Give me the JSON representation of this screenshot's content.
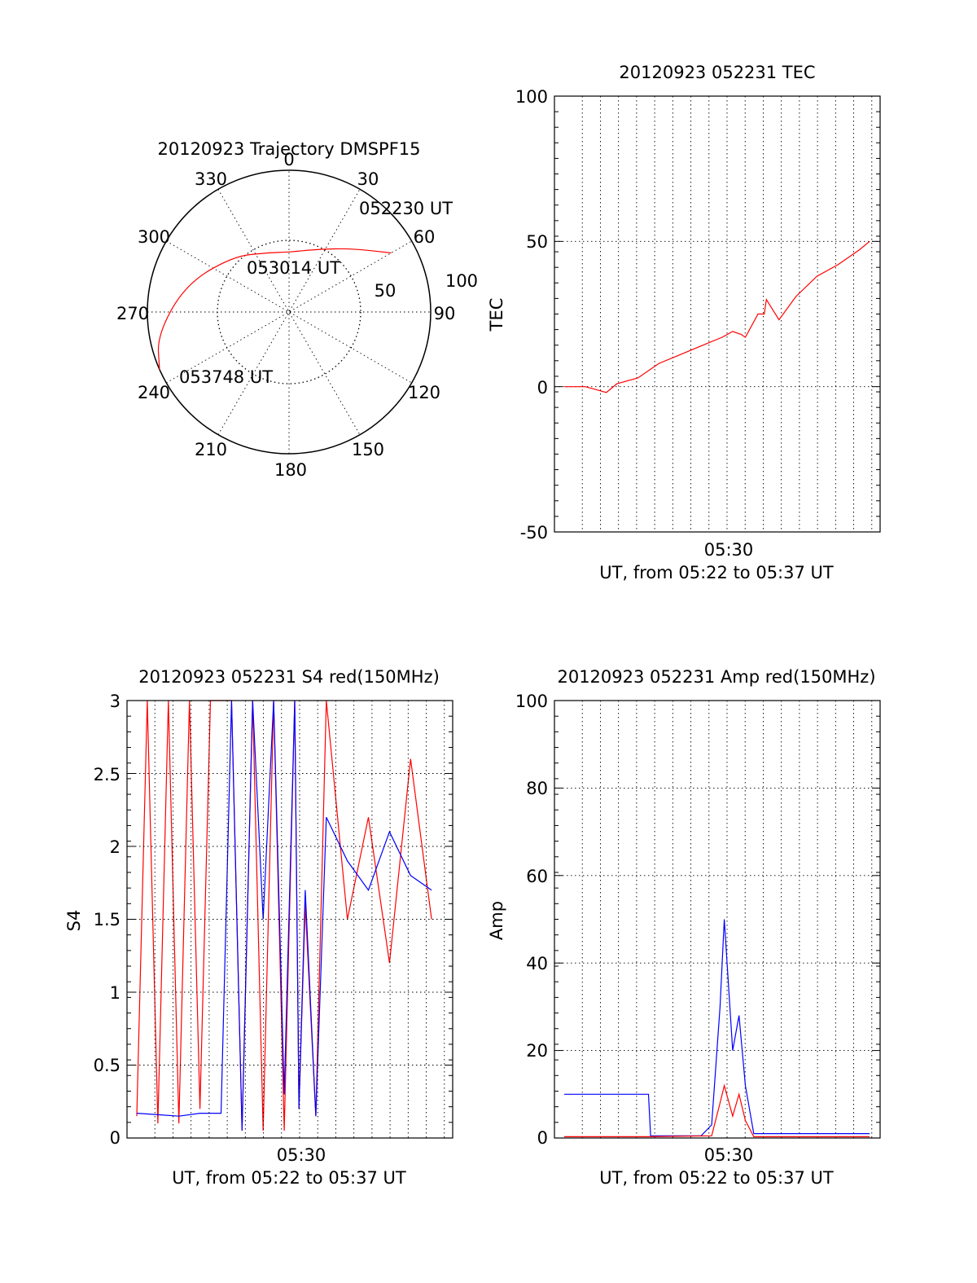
{
  "chart_data": [
    {
      "type": "polar",
      "title": "20120923 Trajectory DMSPF15",
      "angle_labels": [
        "0",
        "30",
        "60",
        "90",
        "120",
        "150",
        "180",
        "210",
        "240",
        "270",
        "300",
        "330"
      ],
      "radius_labels": [
        "50",
        "100"
      ],
      "trajectory": {
        "color": "#ff0000",
        "points": [
          {
            "az": 60,
            "el": 15
          },
          {
            "az": 45,
            "el": 33
          },
          {
            "az": 25,
            "el": 46
          },
          {
            "az": 0,
            "el": 52
          },
          {
            "az": -20,
            "el": 50
          },
          {
            "az": -45,
            "el": 40
          },
          {
            "az": -75,
            "el": 22
          },
          {
            "az": -100,
            "el": 5
          },
          {
            "az": -114,
            "el": 0
          }
        ]
      },
      "annotations": [
        "052230 UT",
        "053014 UT",
        "053748 UT"
      ]
    },
    {
      "type": "line",
      "title": "20120923 052231 TEC",
      "xlabel": "UT, from 05:22 to 05:37 UT",
      "ylabel": "TEC",
      "x_tick_labels": [
        "05:30"
      ],
      "ylim": [
        -50,
        100
      ],
      "y_ticks": [
        -50,
        0,
        50,
        100
      ],
      "series": [
        {
          "color": "#ff0000",
          "x_minutes": [
            0,
            1,
            1.5,
            2,
            2.5,
            3.5,
            4.5,
            5.5,
            6.5,
            7.5,
            8,
            8.4,
            8.6,
            9.2,
            9.5,
            9.6,
            10.2,
            11,
            12,
            13,
            14,
            14.5
          ],
          "values": [
            0,
            0,
            -1,
            -2,
            1,
            3,
            8,
            11,
            14,
            17,
            19,
            18,
            17,
            25,
            25,
            30,
            23,
            31,
            38,
            42,
            47,
            50
          ]
        }
      ]
    },
    {
      "type": "line",
      "title": "20120923 052231 S4 red(150MHz)",
      "xlabel": "UT, from 05:22 to 05:37 UT",
      "ylabel": "S4",
      "x_tick_labels": [
        "05:30"
      ],
      "ylim": [
        0,
        3
      ],
      "y_ticks": [
        0,
        0.5,
        1,
        1.5,
        2,
        2.5,
        3
      ],
      "y_tick_labels": [
        "0",
        "0.5",
        "1",
        "1.5",
        "2",
        "2.5",
        "3"
      ],
      "series": [
        {
          "color": "#ff0000",
          "x_minutes": [
            0,
            0.5,
            1,
            1.5,
            2,
            2.5,
            3,
            3.5,
            4.5,
            5,
            5.5,
            6,
            6.5,
            7,
            7.5,
            7.7,
            8,
            8.5,
            9,
            10,
            11,
            12,
            13,
            14
          ],
          "values": [
            0.15,
            3,
            0.1,
            3,
            0.1,
            3,
            0.2,
            3,
            3,
            0.05,
            3,
            0.05,
            3,
            0.05,
            3,
            0.2,
            1.6,
            0.15,
            3,
            1.5,
            2.2,
            1.2,
            2.6,
            1.5
          ]
        },
        {
          "color": "#0000ff",
          "x_minutes": [
            0,
            1,
            2,
            3,
            4,
            4.5,
            5,
            5.5,
            6,
            6.5,
            7,
            7.5,
            7.7,
            8,
            8.5,
            9,
            10,
            11,
            12,
            13,
            14
          ],
          "values": [
            0.17,
            0.16,
            0.15,
            0.17,
            0.17,
            3,
            0.05,
            3,
            1.5,
            3,
            0.3,
            3,
            0.2,
            1.7,
            0.15,
            2.2,
            1.9,
            1.7,
            2.1,
            1.8,
            1.7
          ]
        }
      ]
    },
    {
      "type": "line",
      "title": "20120923 052231 Amp red(150MHz)",
      "xlabel": "UT, from 05:22 to 05:37 UT",
      "ylabel": "Amp",
      "x_tick_labels": [
        "05:30"
      ],
      "ylim": [
        0,
        100
      ],
      "y_ticks": [
        0,
        20,
        40,
        60,
        80,
        100
      ],
      "series": [
        {
          "color": "#0000ff",
          "x_minutes": [
            0,
            4,
            4.1,
            6.5,
            7,
            7.4,
            7.6,
            8,
            8.3,
            8.6,
            9,
            10,
            14.5
          ],
          "values": [
            10,
            10,
            0.5,
            0.5,
            3,
            30,
            50,
            20,
            28,
            12,
            1,
            1,
            1
          ]
        },
        {
          "color": "#ff0000",
          "x_minutes": [
            0,
            4,
            7,
            7.4,
            7.6,
            8,
            8.3,
            8.6,
            9,
            14.5
          ],
          "values": [
            0.3,
            0.3,
            0.5,
            8,
            12,
            5,
            10,
            4,
            0.3,
            0.3
          ]
        }
      ]
    }
  ]
}
